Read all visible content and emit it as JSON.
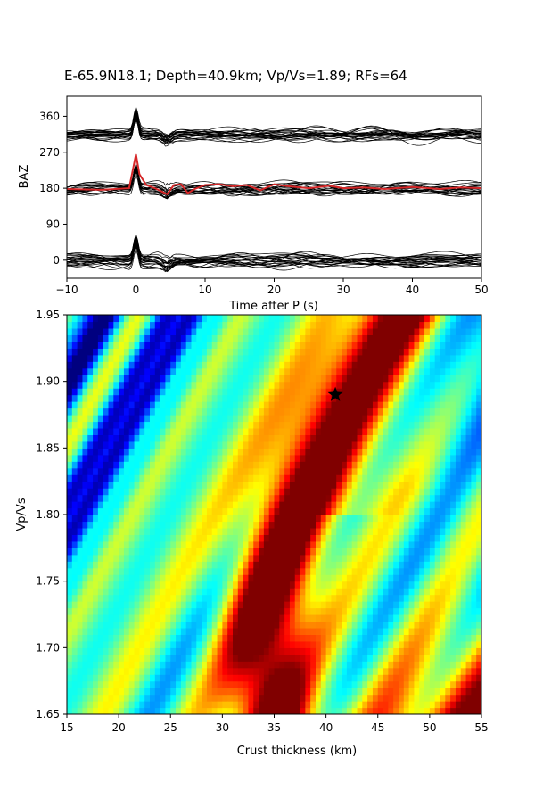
{
  "chart_data": [
    {
      "type": "line",
      "title": "E-65.9N18.1; Depth=40.9km; Vp/Vs=1.89; RFs=64",
      "xlabel": "Time after P (s)",
      "ylabel": "BAZ",
      "xlim": [
        -10,
        50
      ],
      "ylim": [
        -45,
        410
      ],
      "x_ticks": [
        "−10",
        "0",
        "10",
        "20",
        "30",
        "40",
        "50"
      ],
      "y_ticks": [
        "0",
        "90",
        "180",
        "270",
        "360"
      ],
      "trace_groups": [
        {
          "baz_offset": 0,
          "count": 22,
          "color": "#000000"
        },
        {
          "baz_offset": 180,
          "count": 20,
          "color": "#000000"
        },
        {
          "baz_offset": 315,
          "count": 22,
          "color": "#000000"
        }
      ],
      "mean_trace": {
        "baz_offset": 180,
        "color": "#d62728",
        "x": [
          -10,
          -5,
          -1,
          0,
          0.5,
          1.5,
          3,
          4.5,
          5.5,
          6.5,
          7.5,
          8.5,
          10,
          12,
          14,
          16,
          18,
          20,
          22,
          25,
          28,
          30,
          33,
          36,
          40,
          44,
          47,
          50
        ],
        "y": [
          178,
          176,
          180,
          265,
          215,
          188,
          178,
          165,
          188,
          190,
          168,
          178,
          188,
          190,
          185,
          188,
          175,
          190,
          185,
          180,
          186,
          180,
          182,
          178,
          183,
          178,
          182,
          180
        ]
      }
    },
    {
      "type": "heatmap",
      "xlabel": "Crust thickness (km)",
      "ylabel": "Vp/Vs",
      "xlim": [
        15,
        55
      ],
      "ylim": [
        1.65,
        1.95
      ],
      "x_ticks": [
        "15",
        "20",
        "25",
        "30",
        "35",
        "40",
        "45",
        "50",
        "55"
      ],
      "y_ticks": [
        "1.65",
        "1.70",
        "1.75",
        "1.80",
        "1.85",
        "1.90",
        "1.95"
      ],
      "colormap": "jet",
      "best_estimate": {
        "thickness_km": 40.9,
        "vp_vs": 1.89,
        "marker": "star"
      }
    }
  ]
}
